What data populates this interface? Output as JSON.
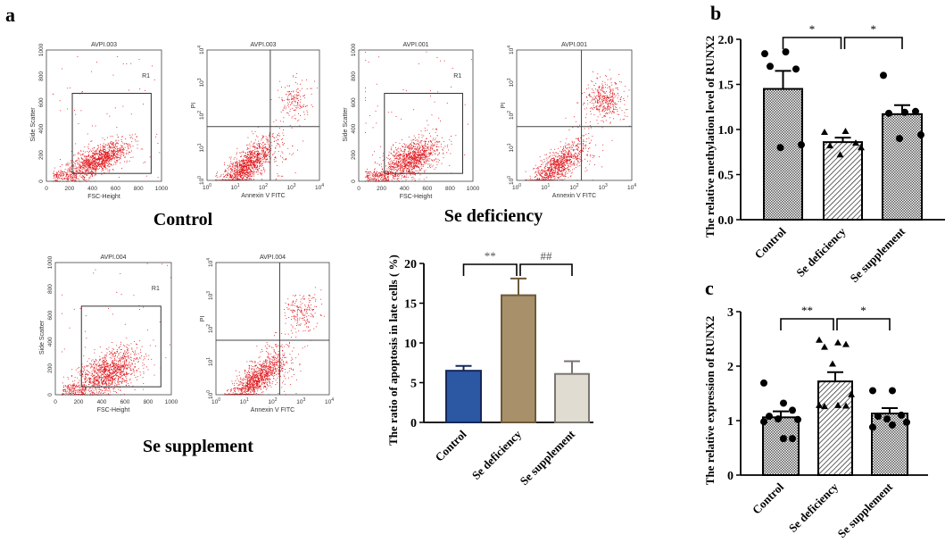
{
  "panel_labels": {
    "a": "a",
    "b": "b",
    "c": "c"
  },
  "flow_groups": [
    {
      "label": "Control",
      "sample_id": "AVPI.003"
    },
    {
      "label": "Se deficiency",
      "sample_id": "AVPI.001"
    },
    {
      "label": "Se supplement",
      "sample_id": "AVPI.004"
    }
  ],
  "flow_axes": {
    "scatter": {
      "xlabel": "FSC-Height",
      "ylabel": "Side Scatter",
      "xticks": [
        "0",
        "200",
        "400",
        "600",
        "800",
        "1000"
      ],
      "yticks": [
        "0",
        "200",
        "400",
        "600",
        "800",
        "1000"
      ],
      "gate_label": "R1"
    },
    "annexin": {
      "xlabel": "Annexin V FITC",
      "ylabel": "PI",
      "ticks": [
        "10",
        "10",
        "10",
        "10",
        "10"
      ],
      "exps": [
        "0",
        "1",
        "2",
        "3",
        "4"
      ]
    }
  },
  "colors": {
    "control": "#2b57a3",
    "deficiency": "#a8916a",
    "supplement": "#e0dcd2",
    "dots": "#e0141a"
  },
  "chart_data": [
    {
      "id": "a",
      "type": "bar",
      "title": "",
      "xlabel": "",
      "ylabel": "The ratio of apoptosis in late cells ( %)",
      "categories": [
        "Control",
        "Se deficiency",
        "Se supplement"
      ],
      "values": [
        6.5,
        16.0,
        6.1
      ],
      "errors": [
        0.6,
        2.1,
        1.6
      ],
      "ylim": [
        0,
        20
      ],
      "yticks": [
        "0",
        "5",
        "10",
        "15",
        "20"
      ],
      "significance": [
        "**",
        "##"
      ]
    },
    {
      "id": "b",
      "type": "bar",
      "title": "",
      "xlabel": "",
      "ylabel": "The relative methylation level of RUNX2",
      "categories": [
        "Control",
        "Se deficiency",
        "Se supplement"
      ],
      "values": [
        1.45,
        0.86,
        1.17
      ],
      "errors": [
        0.2,
        0.05,
        0.1
      ],
      "points": [
        [
          1.84,
          1.86,
          1.67,
          1.7,
          0.8,
          0.83
        ],
        [
          0.97,
          0.98,
          0.85,
          0.82,
          0.72,
          0.8
        ],
        [
          1.6,
          1.19,
          1.2,
          1.18,
          0.9,
          0.94
        ]
      ],
      "ylim": [
        0,
        2.0
      ],
      "yticks": [
        "0.0",
        "0.5",
        "1.0",
        "1.5",
        "2.0"
      ],
      "significance": [
        "*",
        "*"
      ]
    },
    {
      "id": "c",
      "type": "bar",
      "title": "",
      "xlabel": "",
      "ylabel": "The relative expression of RUNX2",
      "categories": [
        "Control",
        "Se deficiency",
        "Se supplement"
      ],
      "values": [
        1.06,
        1.72,
        1.13
      ],
      "errors": [
        0.11,
        0.17,
        0.1
      ],
      "points": [
        [
          1.69,
          1.32,
          1.19,
          1.08,
          1.03,
          1.02,
          0.98,
          0.67,
          0.67
        ],
        [
          2.48,
          2.43,
          2.4,
          2.35,
          2.04,
          1.48,
          1.28,
          1.28,
          1.27,
          1.26
        ],
        [
          1.55,
          1.55,
          1.1,
          1.08,
          1.03,
          0.97,
          0.88,
          0.92
        ]
      ],
      "ylim": [
        0,
        3
      ],
      "yticks": [
        "0",
        "1",
        "2",
        "3"
      ],
      "significance": [
        "**",
        "*"
      ]
    }
  ]
}
